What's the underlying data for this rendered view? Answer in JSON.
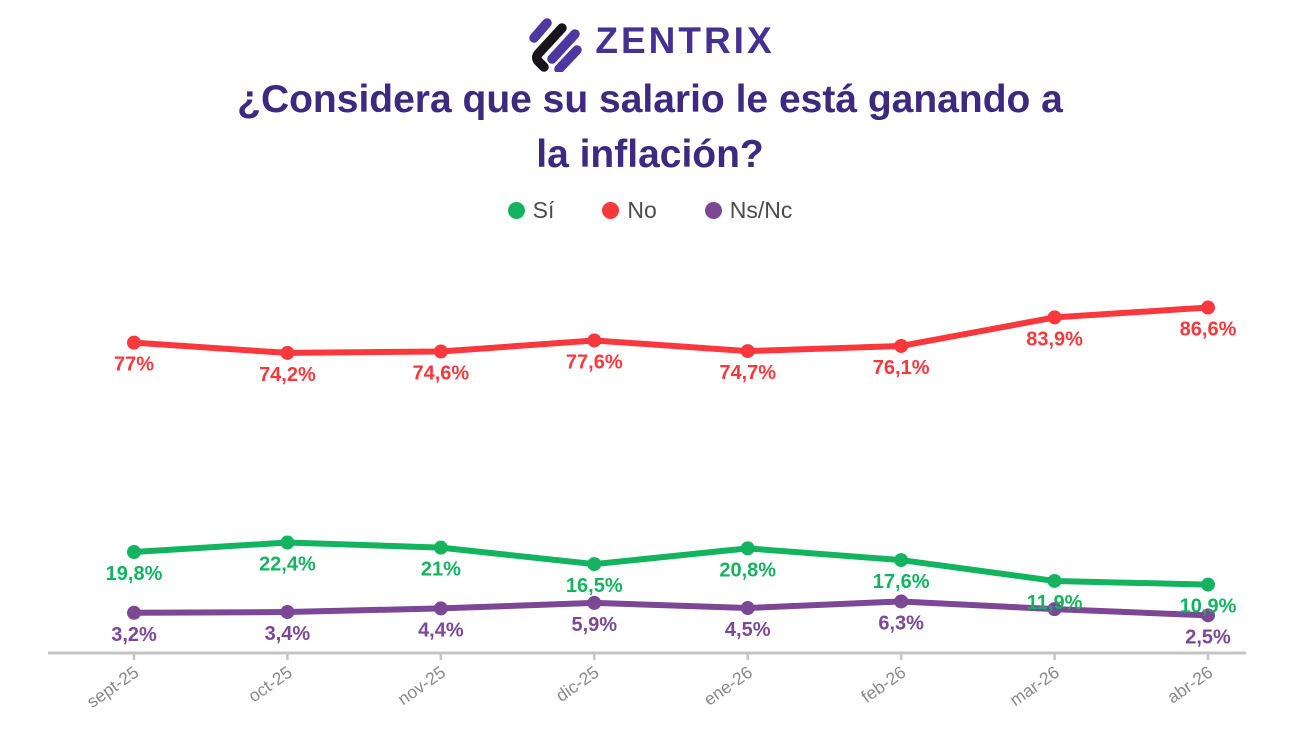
{
  "brand": {
    "name": "ZENTRIX",
    "icon": "diagonal-stripes-diamond",
    "icon_colors": {
      "purple": "#4d37a0",
      "black": "#17141c"
    },
    "text_color": "#453191"
  },
  "title": {
    "lines": [
      "¿Considera que su salario le está ganando a",
      "la inflación?"
    ],
    "color": "#3b2a80"
  },
  "legend": {
    "items": [
      {
        "label": "Sí",
        "color": "#13b35f"
      },
      {
        "label": "No",
        "color": "#f9383d"
      },
      {
        "label": "Ns/Nc",
        "color": "#7c4795"
      }
    ]
  },
  "chart_data": {
    "type": "line",
    "title": "¿Considera que su salario le está ganando a la inflación?",
    "categories": [
      "sept-25",
      "oct-25",
      "nov-25",
      "dic-25",
      "ene-26",
      "feb-26",
      "mar-26",
      "abr-26"
    ],
    "series": [
      {
        "name": "No",
        "color": "#f9383d",
        "values": [
          77,
          74.2,
          74.6,
          77.6,
          74.7,
          76.1,
          83.9,
          86.6
        ],
        "labels": [
          "77%",
          "74,2%",
          "74,6%",
          "77,6%",
          "74,7%",
          "76,1%",
          "83,9%",
          "86,6%"
        ]
      },
      {
        "name": "Ns/Nc",
        "color": "#7c4795",
        "values": [
          3.2,
          3.4,
          4.4,
          5.9,
          4.5,
          6.3,
          4.2,
          2.5
        ],
        "labels": [
          "3,2%",
          "3,4%",
          "4,4%",
          "5,9%",
          "4,5%",
          "6,3%",
          "",
          "2,5%"
        ],
        "label_note": "mar-26 value label is hidden behind the Sí series label in the source image"
      },
      {
        "name": "Sí",
        "color": "#13b35f",
        "values": [
          19.8,
          22.4,
          21,
          16.5,
          20.8,
          17.6,
          11.9,
          10.9
        ],
        "labels": [
          "19,8%",
          "22,4%",
          "21%",
          "16,5%",
          "20,8%",
          "17,6%",
          "11,9%",
          "10,9%"
        ]
      }
    ],
    "ylim": [
      0,
      100
    ],
    "grid": false,
    "y_axis_shown": false,
    "legend_position": "top",
    "x_axis": {
      "line_color": "#c4c4c4",
      "tick_label_color": "#8a8a8a",
      "tick_label_rotation_deg": -35
    },
    "value_labels": "shown below each point, series-colored, comma decimals"
  }
}
